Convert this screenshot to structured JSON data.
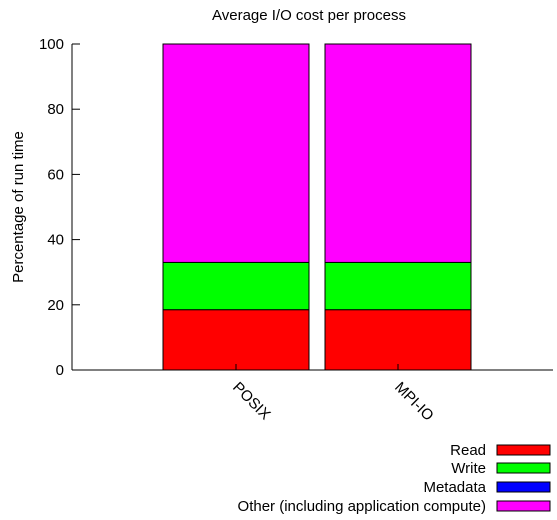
{
  "chart_data": {
    "type": "bar",
    "stacked": true,
    "title": "Average I/O cost per process",
    "xlabel": "",
    "ylabel": "Percentage of run time",
    "ylim": [
      0,
      100
    ],
    "yticks": [
      "0",
      "20",
      "40",
      "60",
      "80",
      "100"
    ],
    "categories": [
      "POSIX",
      "MPI-IO"
    ],
    "series": [
      {
        "name": "Read",
        "color": "#ff0000",
        "values": [
          18.5,
          18.5
        ]
      },
      {
        "name": "Write",
        "color": "#00ff00",
        "values": [
          14.5,
          14.5
        ]
      },
      {
        "name": "Metadata",
        "color": "#0000ff",
        "values": [
          0,
          0
        ]
      },
      {
        "name": "Other (including application compute)",
        "color": "#ff00ff",
        "values": [
          67,
          67
        ]
      }
    ],
    "legend_position": "bottom-right",
    "grid": false
  }
}
